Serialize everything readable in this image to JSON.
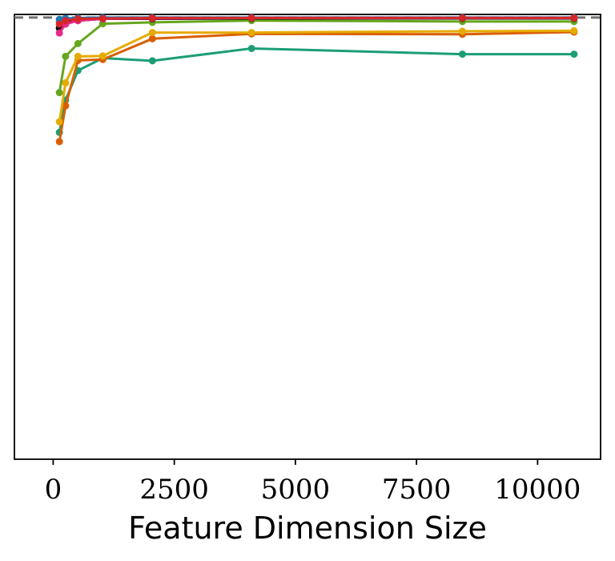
{
  "chart_data": {
    "type": "line",
    "title": "",
    "xlabel": "Feature Dimension Size",
    "ylabel": "",
    "xlim": [
      -800,
      11300
    ],
    "ylim": [
      0.0,
      1.007
    ],
    "x_ticks": [
      0,
      2500,
      5000,
      7500,
      10000
    ],
    "x_tick_labels": [
      "0",
      "2500",
      "5000",
      "7500",
      "10000"
    ],
    "y_ticks_visible": false,
    "grid": false,
    "legend": "none",
    "reference_line": {
      "y": 1.0,
      "style": "dashed",
      "color": "#707070"
    },
    "series": [
      {
        "color": "#1b9e77",
        "x": [
          128,
          256,
          512,
          1024,
          2048,
          4096,
          8448,
          10752
        ],
        "y": [
          0.74,
          0.813,
          0.88,
          0.908,
          0.902,
          0.93,
          0.917,
          0.917
        ]
      },
      {
        "color": "#d95f02",
        "x": [
          128,
          256,
          512,
          1024,
          2048,
          4096,
          8448,
          10752
        ],
        "y": [
          0.719,
          0.8,
          0.903,
          0.905,
          0.952,
          0.963,
          0.962,
          0.967
        ]
      },
      {
        "color": "#e6ab02",
        "x": [
          128,
          256,
          512,
          1024,
          2048,
          4096,
          8448,
          10752
        ],
        "y": [
          0.764,
          0.852,
          0.912,
          0.913,
          0.966,
          0.966,
          0.969,
          0.97
        ]
      },
      {
        "color": "#66a61e",
        "x": [
          128,
          256,
          512,
          1024,
          2048,
          4096,
          8448,
          10752
        ],
        "y": [
          0.83,
          0.912,
          0.941,
          0.986,
          0.989,
          0.993,
          0.991,
          0.991
        ]
      },
      {
        "color": "#000000",
        "x": [
          128,
          256,
          512,
          1024,
          2048,
          4096,
          8448,
          10752
        ],
        "y": [
          0.976,
          0.988,
          0.993,
          0.997,
          0.997,
          0.998,
          0.998,
          0.998
        ]
      },
      {
        "color": "#7570b3",
        "x": [
          128,
          256,
          512,
          1024,
          2048,
          4096,
          8448,
          10752
        ],
        "y": [
          0.99,
          0.995,
          0.997,
          0.998,
          0.999,
          0.999,
          0.999,
          0.999
        ]
      },
      {
        "color": "#1f78b4",
        "x": [
          128,
          256,
          512,
          1024,
          2048,
          4096,
          8448,
          10752
        ],
        "y": [
          0.996,
          0.998,
          0.999,
          1.0,
          1.0,
          1.0,
          1.0,
          1.0
        ]
      },
      {
        "color": "#e7298a",
        "x": [
          128,
          256,
          512,
          1024,
          2048,
          4096,
          8448,
          10752
        ],
        "y": [
          0.965,
          0.985,
          0.993,
          0.997,
          0.998,
          0.999,
          0.999,
          0.999
        ]
      },
      {
        "color": "#d62728",
        "x": [
          128,
          256,
          512,
          1024,
          2048,
          4096,
          8448,
          10752
        ],
        "y": [
          0.985,
          0.993,
          0.997,
          0.998,
          0.999,
          0.999,
          0.999,
          0.999
        ]
      }
    ]
  }
}
